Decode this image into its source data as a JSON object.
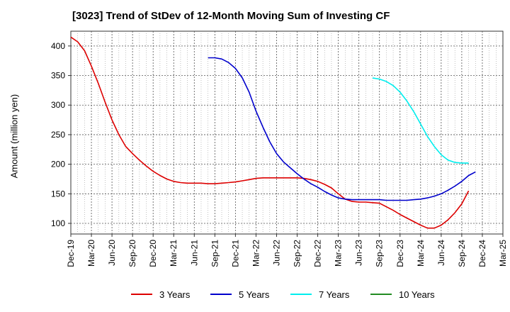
{
  "chart_data": {
    "type": "line",
    "title": "[3023]  Trend of StDev of 12-Month Moving Sum of Investing CF",
    "xlabel": "",
    "ylabel": "Amount (million yen)",
    "ylim": [
      82,
      425
    ],
    "yticks": [
      100,
      150,
      200,
      250,
      300,
      350,
      400
    ],
    "x_tick_labels": [
      "Dec-19",
      "Mar-20",
      "Jun-20",
      "Sep-20",
      "Dec-20",
      "Mar-21",
      "Jun-21",
      "Sep-21",
      "Dec-21",
      "Mar-22",
      "Jun-22",
      "Sep-22",
      "Dec-22",
      "Mar-23",
      "Jun-23",
      "Sep-23",
      "Dec-23",
      "Mar-24",
      "Jun-24",
      "Sep-24",
      "Dec-24",
      "Mar-25"
    ],
    "grid": true,
    "legend_position": "bottom",
    "series": [
      {
        "name": "3 Years",
        "color": "#dd0000",
        "points": [
          [
            "2019-12",
            415
          ],
          [
            "2020-01",
            407
          ],
          [
            "2020-02",
            392
          ],
          [
            "2020-03",
            366
          ],
          [
            "2020-04",
            337
          ],
          [
            "2020-05",
            305
          ],
          [
            "2020-06",
            275
          ],
          [
            "2020-07",
            250
          ],
          [
            "2020-08",
            230
          ],
          [
            "2020-09",
            218
          ],
          [
            "2020-10",
            207
          ],
          [
            "2020-11",
            197
          ],
          [
            "2020-12",
            188
          ],
          [
            "2021-01",
            181
          ],
          [
            "2021-02",
            175
          ],
          [
            "2021-03",
            171
          ],
          [
            "2021-04",
            169
          ],
          [
            "2021-05",
            168
          ],
          [
            "2021-06",
            168
          ],
          [
            "2021-07",
            168
          ],
          [
            "2021-08",
            167
          ],
          [
            "2021-09",
            167
          ],
          [
            "2021-10",
            168
          ],
          [
            "2021-11",
            169
          ],
          [
            "2021-12",
            170
          ],
          [
            "2022-01",
            172
          ],
          [
            "2022-02",
            174
          ],
          [
            "2022-03",
            176
          ],
          [
            "2022-04",
            177
          ],
          [
            "2022-05",
            177
          ],
          [
            "2022-06",
            177
          ],
          [
            "2022-07",
            177
          ],
          [
            "2022-08",
            177
          ],
          [
            "2022-09",
            177
          ],
          [
            "2022-10",
            176
          ],
          [
            "2022-11",
            174
          ],
          [
            "2022-12",
            171
          ],
          [
            "2023-01",
            166
          ],
          [
            "2023-02",
            160
          ],
          [
            "2023-03",
            150
          ],
          [
            "2023-04",
            141
          ],
          [
            "2023-05",
            137
          ],
          [
            "2023-06",
            136
          ],
          [
            "2023-07",
            136
          ],
          [
            "2023-08",
            135
          ],
          [
            "2023-09",
            134
          ],
          [
            "2023-10",
            128
          ],
          [
            "2023-11",
            122
          ],
          [
            "2023-12",
            115
          ],
          [
            "2024-01",
            109
          ],
          [
            "2024-02",
            103
          ],
          [
            "2024-03",
            97
          ],
          [
            "2024-04",
            92
          ],
          [
            "2024-05",
            92
          ],
          [
            "2024-06",
            97
          ],
          [
            "2024-07",
            106
          ],
          [
            "2024-08",
            118
          ],
          [
            "2024-09",
            133
          ],
          [
            "2024-10",
            155
          ]
        ]
      },
      {
        "name": "5 Years",
        "color": "#0000cc",
        "points": [
          [
            "2021-08",
            380
          ],
          [
            "2021-09",
            380
          ],
          [
            "2021-10",
            378
          ],
          [
            "2021-11",
            372
          ],
          [
            "2021-12",
            362
          ],
          [
            "2022-01",
            346
          ],
          [
            "2022-02",
            322
          ],
          [
            "2022-03",
            290
          ],
          [
            "2022-04",
            263
          ],
          [
            "2022-05",
            238
          ],
          [
            "2022-06",
            218
          ],
          [
            "2022-07",
            204
          ],
          [
            "2022-08",
            194
          ],
          [
            "2022-09",
            184
          ],
          [
            "2022-10",
            175
          ],
          [
            "2022-11",
            167
          ],
          [
            "2022-12",
            161
          ],
          [
            "2023-01",
            154
          ],
          [
            "2023-02",
            148
          ],
          [
            "2023-03",
            143
          ],
          [
            "2023-04",
            141
          ],
          [
            "2023-05",
            140
          ],
          [
            "2023-06",
            140
          ],
          [
            "2023-07",
            140
          ],
          [
            "2023-08",
            140
          ],
          [
            "2023-09",
            140
          ],
          [
            "2023-10",
            139
          ],
          [
            "2023-11",
            139
          ],
          [
            "2023-12",
            139
          ],
          [
            "2024-01",
            139
          ],
          [
            "2024-02",
            140
          ],
          [
            "2024-03",
            141
          ],
          [
            "2024-04",
            143
          ],
          [
            "2024-05",
            146
          ],
          [
            "2024-06",
            150
          ],
          [
            "2024-07",
            156
          ],
          [
            "2024-08",
            163
          ],
          [
            "2024-09",
            171
          ],
          [
            "2024-10",
            181
          ],
          [
            "2024-11",
            187
          ]
        ]
      },
      {
        "name": "7 Years",
        "color": "#00eeee",
        "points": [
          [
            "2023-08",
            346
          ],
          [
            "2023-09",
            344
          ],
          [
            "2023-10",
            340
          ],
          [
            "2023-11",
            333
          ],
          [
            "2023-12",
            322
          ],
          [
            "2024-01",
            307
          ],
          [
            "2024-02",
            289
          ],
          [
            "2024-03",
            268
          ],
          [
            "2024-04",
            247
          ],
          [
            "2024-05",
            230
          ],
          [
            "2024-06",
            216
          ],
          [
            "2024-07",
            207
          ],
          [
            "2024-08",
            203
          ],
          [
            "2024-09",
            202
          ],
          [
            "2024-10",
            202
          ]
        ]
      },
      {
        "name": "10 Years",
        "color": "#228b22",
        "points": []
      }
    ]
  }
}
